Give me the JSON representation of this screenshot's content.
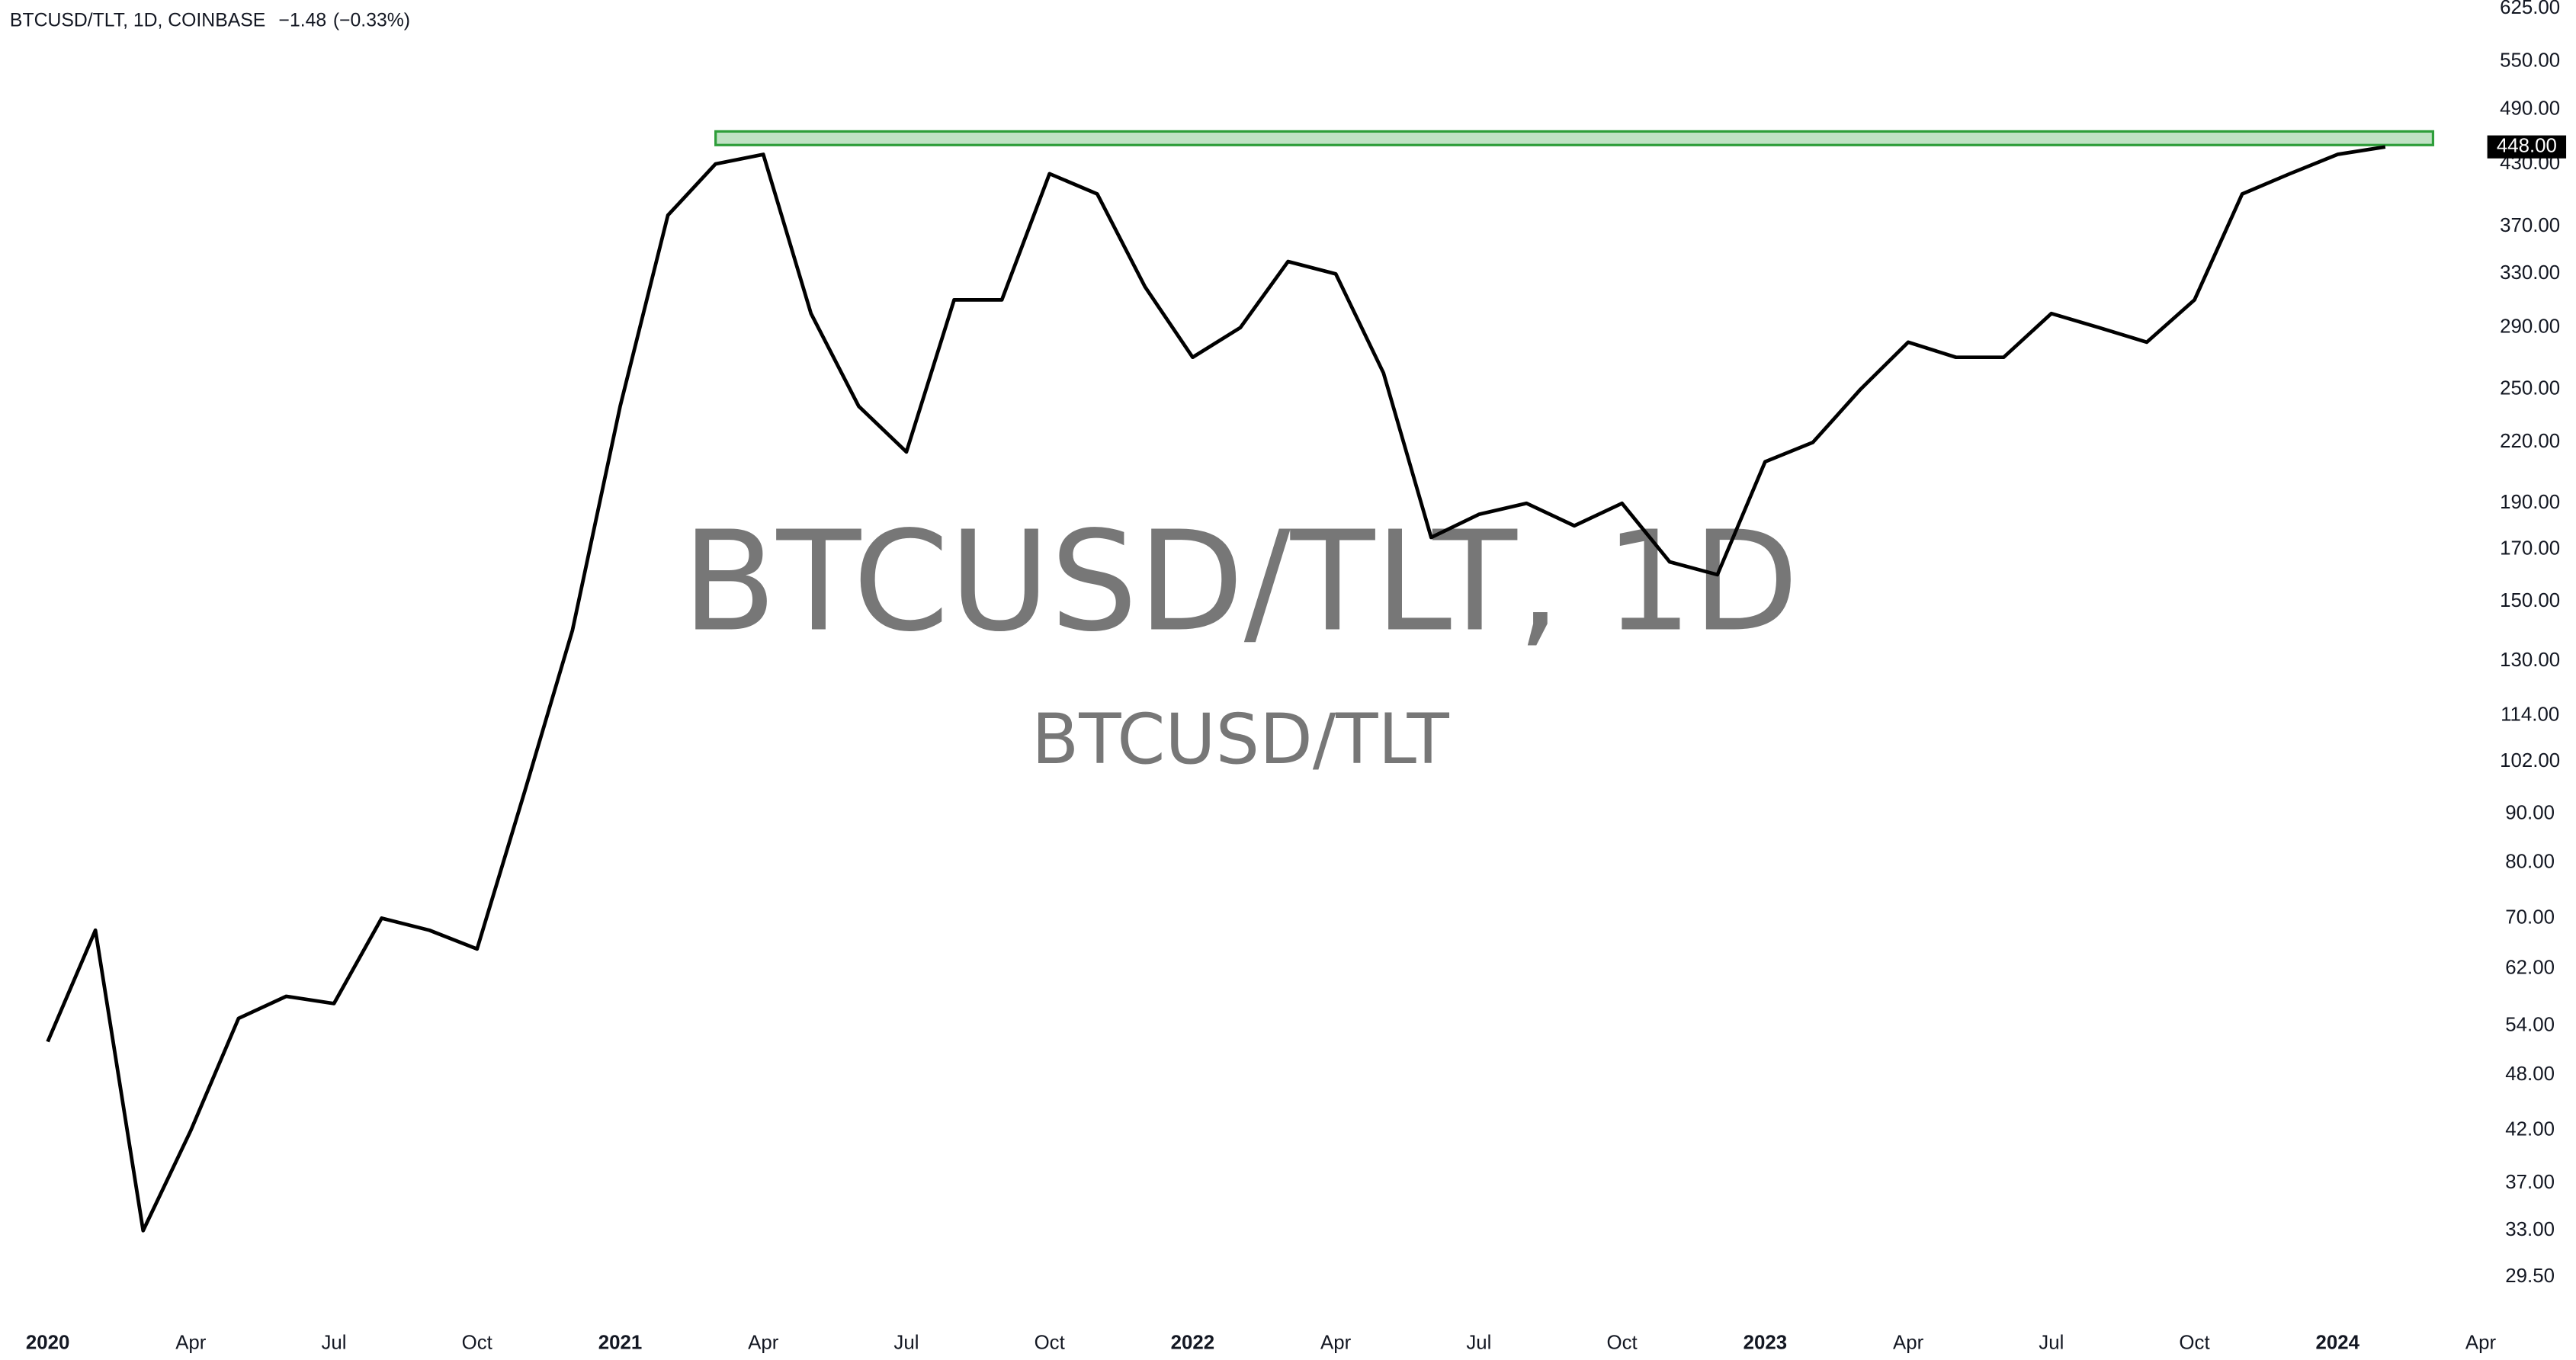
{
  "header": {
    "symbol": "BTCUSD/TLT, 1D, COINBASE",
    "change": "−1.48",
    "change_pct": "(−0.33%)"
  },
  "watermark": {
    "main": "BTCUSD/TLT, 1D",
    "sub": "BTCUSD/TLT"
  },
  "chart_data": {
    "type": "line",
    "log_scale": true,
    "x": [
      "2020-01",
      "2020-02",
      "2020-03",
      "2020-04",
      "2020-05",
      "2020-06",
      "2020-07",
      "2020-08",
      "2020-09",
      "2020-10",
      "2020-11",
      "2020-12",
      "2021-01",
      "2021-02",
      "2021-03",
      "2021-04",
      "2021-05",
      "2021-06",
      "2021-07",
      "2021-08",
      "2021-09",
      "2021-10",
      "2021-11",
      "2021-12",
      "2022-01",
      "2022-02",
      "2022-03",
      "2022-04",
      "2022-05",
      "2022-06",
      "2022-07",
      "2022-08",
      "2022-09",
      "2022-10",
      "2022-11",
      "2022-12",
      "2023-01",
      "2023-02",
      "2023-03",
      "2023-04",
      "2023-05",
      "2023-06",
      "2023-07",
      "2023-08",
      "2023-09",
      "2023-10",
      "2023-11",
      "2023-12",
      "2024-01",
      "2024-02"
    ],
    "series": [
      {
        "name": "BTCUSD/TLT",
        "color": "#000000",
        "values": [
          52,
          68,
          33,
          42,
          55,
          58,
          57,
          70,
          68,
          65,
          95,
          140,
          240,
          380,
          430,
          440,
          300,
          240,
          215,
          310,
          310,
          420,
          400,
          320,
          270,
          290,
          340,
          330,
          260,
          175,
          185,
          190,
          180,
          190,
          165,
          160,
          210,
          220,
          250,
          280,
          270,
          270,
          300,
          290,
          280,
          310,
          400,
          420,
          440,
          448
        ]
      }
    ],
    "xlim": [
      "2019-12",
      "2024-04"
    ],
    "xticks": [
      {
        "value": "2020-01",
        "label": "2020"
      },
      {
        "value": "2020-04",
        "label": "Apr"
      },
      {
        "value": "2020-07",
        "label": "Jul"
      },
      {
        "value": "2020-10",
        "label": "Oct"
      },
      {
        "value": "2021-01",
        "label": "2021"
      },
      {
        "value": "2021-04",
        "label": "Apr"
      },
      {
        "value": "2021-07",
        "label": "Jul"
      },
      {
        "value": "2021-10",
        "label": "Oct"
      },
      {
        "value": "2022-01",
        "label": "2022"
      },
      {
        "value": "2022-04",
        "label": "Apr"
      },
      {
        "value": "2022-07",
        "label": "Jul"
      },
      {
        "value": "2022-10",
        "label": "Oct"
      },
      {
        "value": "2023-01",
        "label": "2023"
      },
      {
        "value": "2023-04",
        "label": "Apr"
      },
      {
        "value": "2023-07",
        "label": "Jul"
      },
      {
        "value": "2023-10",
        "label": "Oct"
      },
      {
        "value": "2024-01",
        "label": "2024"
      },
      {
        "value": "2024-04",
        "label": "Apr"
      }
    ],
    "ylim": [
      27,
      638
    ],
    "yticks": [
      {
        "value": 29.5,
        "label": "29.50"
      },
      {
        "value": 33,
        "label": "33.00"
      },
      {
        "value": 37,
        "label": "37.00"
      },
      {
        "value": 42,
        "label": "42.00"
      },
      {
        "value": 48,
        "label": "48.00"
      },
      {
        "value": 54,
        "label": "54.00"
      },
      {
        "value": 62,
        "label": "62.00"
      },
      {
        "value": 70,
        "label": "70.00"
      },
      {
        "value": 80,
        "label": "80.00"
      },
      {
        "value": 90,
        "label": "90.00"
      },
      {
        "value": 102,
        "label": "102.00"
      },
      {
        "value": 114,
        "label": "114.00"
      },
      {
        "value": 130,
        "label": "130.00"
      },
      {
        "value": 150,
        "label": "150.00"
      },
      {
        "value": 170,
        "label": "170.00"
      },
      {
        "value": 190,
        "label": "190.00"
      },
      {
        "value": 220,
        "label": "220.00"
      },
      {
        "value": 250,
        "label": "250.00"
      },
      {
        "value": 290,
        "label": "290.00"
      },
      {
        "value": 330,
        "label": "330.00"
      },
      {
        "value": 370,
        "label": "370.00"
      },
      {
        "value": 430,
        "label": "430.00"
      },
      {
        "value": 490,
        "label": "490.00"
      },
      {
        "value": 550,
        "label": "550.00"
      },
      {
        "value": 625,
        "label": "625.00"
      }
    ],
    "last_price": {
      "value": 448,
      "label": "448.00"
    },
    "zone": {
      "x": [
        "2021-03",
        "2024-03"
      ],
      "y": [
        450,
        465
      ],
      "color": "#2e9e3a"
    }
  }
}
